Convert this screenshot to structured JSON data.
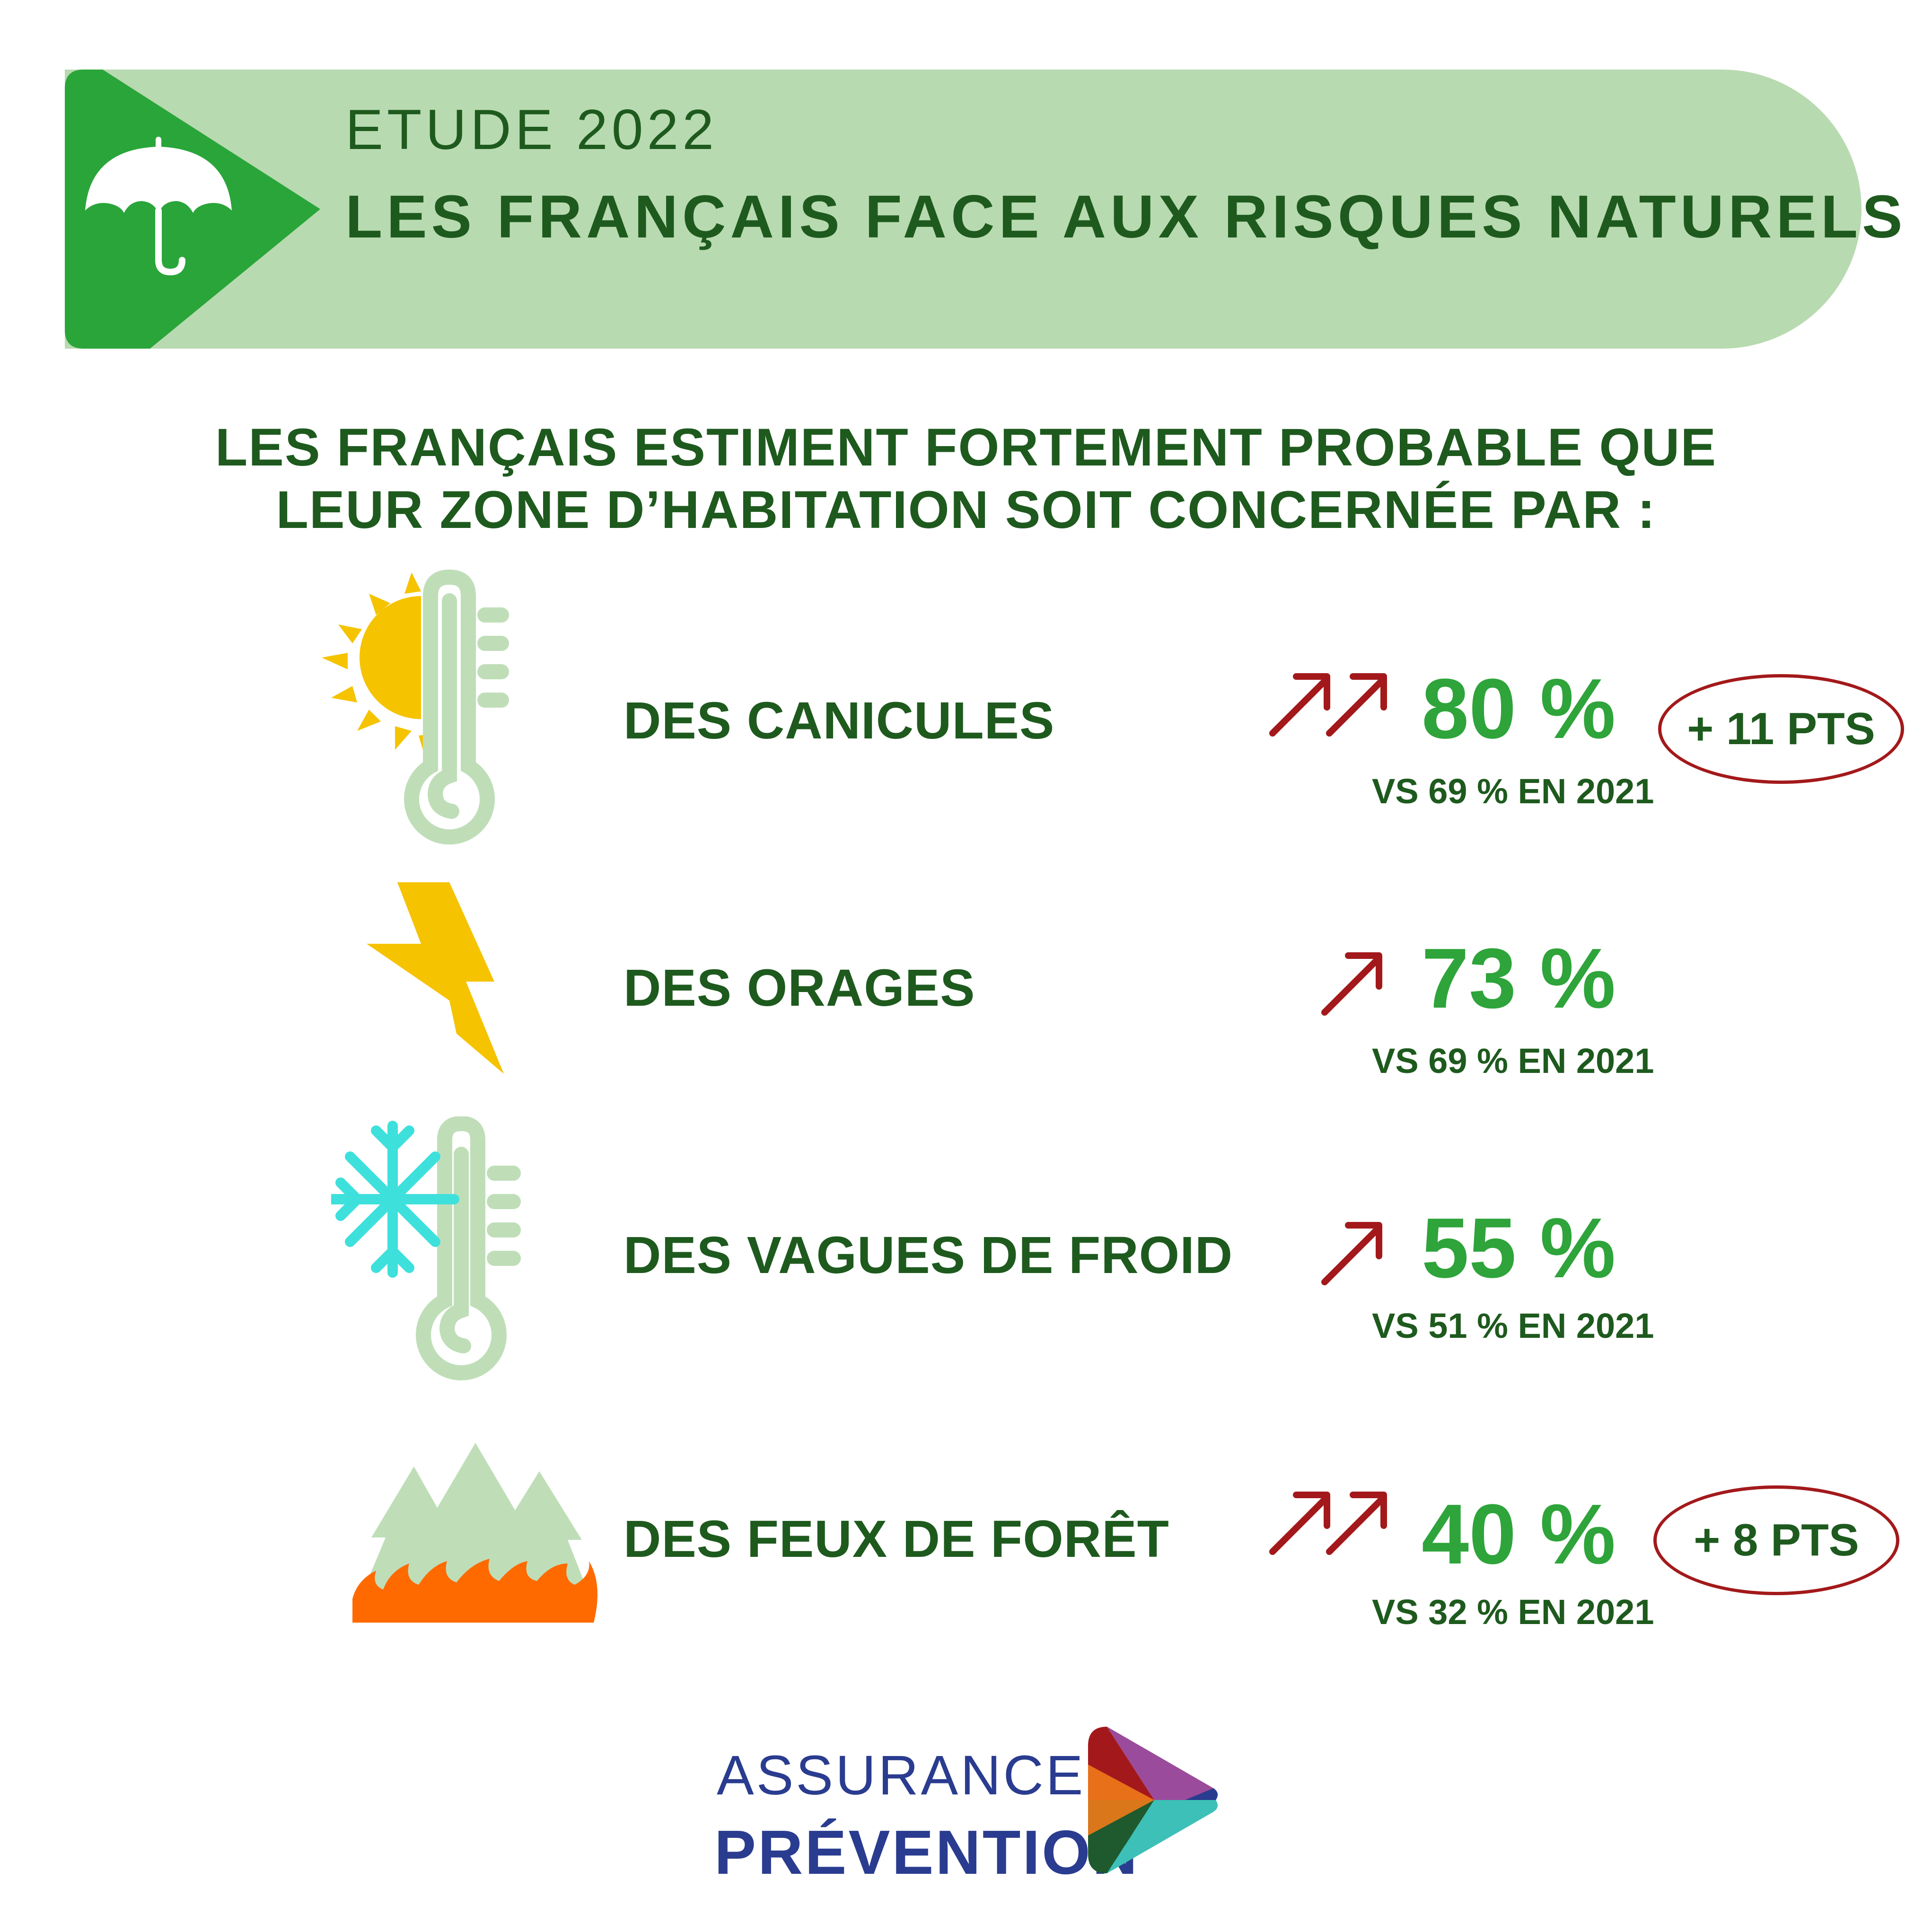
{
  "header": {
    "kicker": "ETUDE 2022",
    "title": "LES FRANÇAIS FACE AUX RISQUES NATURELS",
    "icon": "umbrella-icon"
  },
  "intro": {
    "line1": "LES FRANÇAIS ESTIMENT FORTEMENT PROBABLE QUE",
    "line2": "LEUR ZONE D’HABITATION SOIT CONCERNÉE PAR :"
  },
  "risks": [
    {
      "label": "DES CANICULES",
      "value": "80 %",
      "comparison": "VS 69 % EN 2021",
      "badge": "+ 11 PTS",
      "icon": "heatwave-thermometer-sun-icon",
      "trend": "double-up-arrow"
    },
    {
      "label": "DES ORAGES",
      "value": "73 %",
      "comparison": "VS 69 % EN 2021",
      "icon": "lightning-icon",
      "trend": "up-arrow"
    },
    {
      "label": "DES VAGUES DE FROID",
      "value": "55 %",
      "comparison": "VS 51 % EN 2021",
      "icon": "cold-thermometer-snowflake-icon",
      "trend": "up-arrow"
    },
    {
      "label": "DES FEUX DE FORÊT",
      "value": "40 %",
      "comparison": "VS 32 % EN 2021",
      "badge": "+ 8 PTS",
      "icon": "forest-fire-icon",
      "trend": "double-up-arrow"
    }
  ],
  "logo": {
    "line1": "ASSURANCE",
    "line2": "PRÉVENTION"
  },
  "colors": {
    "banner": "#b8dab0",
    "accent_green": "#2ea43a",
    "dark_green": "#1e5a1e",
    "arrow_red": "#a3191b",
    "logo_blue": "#2a3c8f"
  }
}
